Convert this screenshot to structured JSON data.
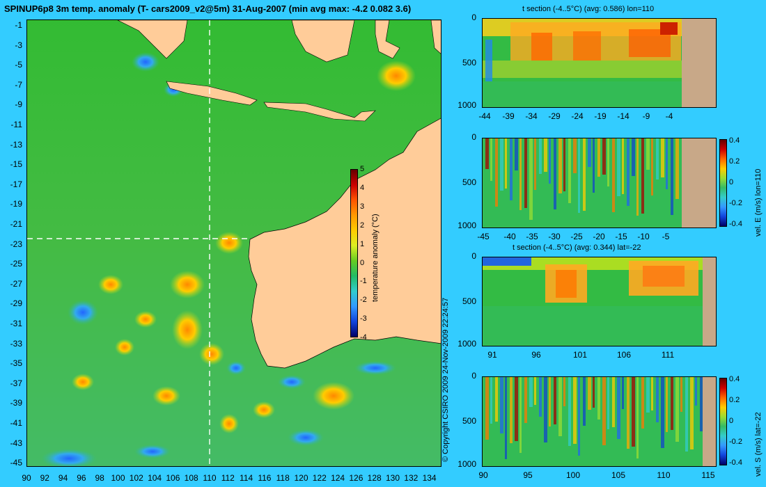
{
  "main_map": {
    "title": "SPINUP6p8 3m temp. anomaly (T- cars2009_v2@5m) 31-Aug-2007 (min avg max: -4.2 0.082 3.6)",
    "lat_ticks": [
      "-1",
      "-3",
      "-5",
      "-7",
      "-9",
      "-11",
      "-13",
      "-15",
      "-17",
      "-19",
      "-21",
      "-23",
      "-25",
      "-27",
      "-29",
      "-31",
      "-33",
      "-35",
      "-37",
      "-39",
      "-41",
      "-43",
      "-45"
    ],
    "lon_ticks": [
      "90",
      "92",
      "94",
      "96",
      "98",
      "100",
      "102",
      "104",
      "106",
      "108",
      "110",
      "112",
      "114",
      "116",
      "118",
      "120",
      "122",
      "124",
      "126",
      "128",
      "130",
      "132",
      "134"
    ],
    "colorbar": {
      "label": "temperature anomaly (°C)",
      "ticks": [
        "5",
        "4",
        "3",
        "2",
        "1",
        "0",
        "-1",
        "-2",
        "-3",
        "-4"
      ]
    },
    "copyright": "© Copyright CSIRO 2009  24-Nov-2009 22:24:57",
    "section_lines": {
      "lon": 110,
      "lat": -22
    }
  },
  "panels": [
    {
      "id": "t_lon",
      "title": "t section (-4..5°C) (avg: 0.586) lon=110",
      "y_ticks": [
        "0",
        "500",
        "1000"
      ],
      "x_ticks": [
        "-44",
        "-39",
        "-34",
        "-29",
        "-24",
        "-19",
        "-14",
        "-9",
        "-4"
      ]
    },
    {
      "id": "u_lon",
      "title": "",
      "y_ticks": [
        "0",
        "500",
        "1000"
      ],
      "x_ticks": [
        "-45",
        "-40",
        "-35",
        "-30",
        "-25",
        "-20",
        "-15",
        "-10",
        "-5"
      ],
      "colorbar": {
        "label": "vel. E (m/s) lon=110",
        "ticks": [
          "0.4",
          "0.2",
          "0",
          "-0.2",
          "-0.4"
        ]
      }
    },
    {
      "id": "t_lat",
      "title": "t section (-4..5°C) (avg: 0.344) lat=-22",
      "y_ticks": [
        "0",
        "500",
        "1000"
      ],
      "x_ticks": [
        "91",
        "96",
        "101",
        "106",
        "111"
      ]
    },
    {
      "id": "v_lat",
      "title": "",
      "y_ticks": [
        "0",
        "500",
        "1000"
      ],
      "x_ticks": [
        "90",
        "95",
        "100",
        "105",
        "110",
        "115"
      ],
      "colorbar": {
        "label": "vel. S (m/s) lat=-22",
        "ticks": [
          "0.4",
          "0.2",
          "0",
          "-0.2",
          "-0.4"
        ]
      }
    }
  ],
  "colors": {
    "background": "#33ccff",
    "land": "#ffcc99",
    "section_land": "#c8a888",
    "ocean_base": "#22bb33"
  }
}
